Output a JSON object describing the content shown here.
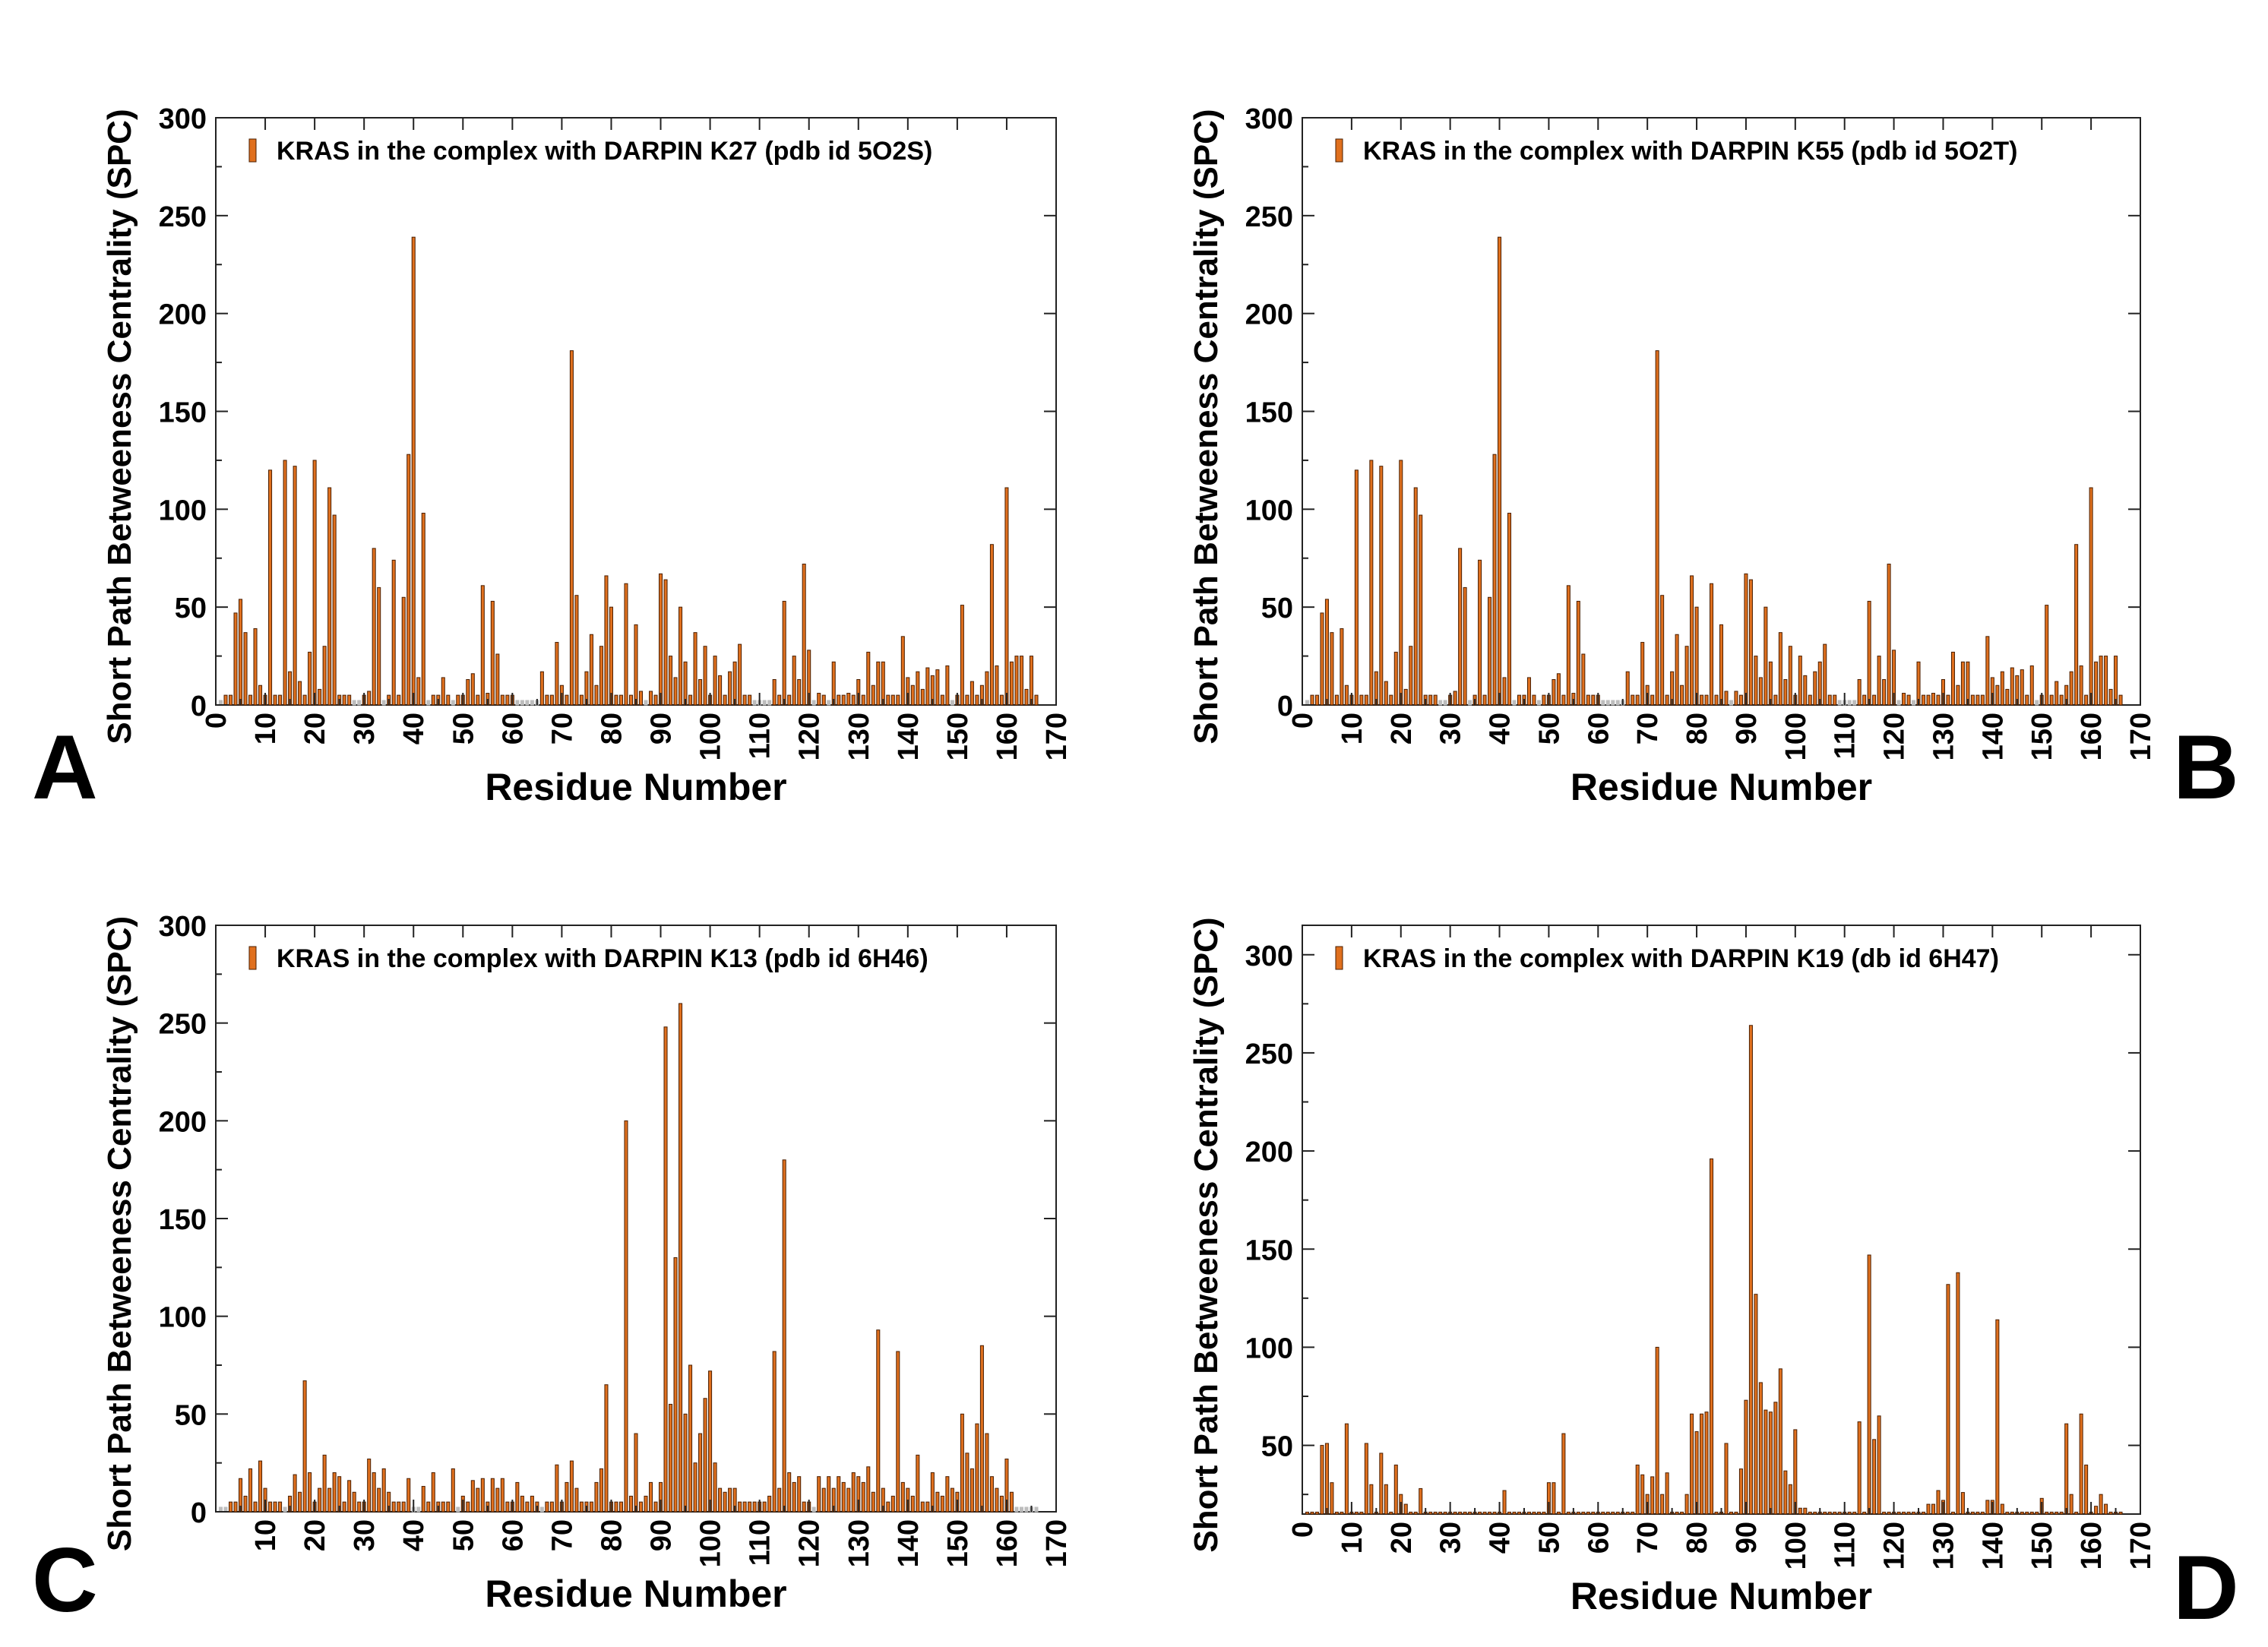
{
  "figure": {
    "panel_letters": [
      "A",
      "B",
      "C",
      "D"
    ],
    "colors": {
      "bar_fill": "#E0701E",
      "bar_stroke": "#4A1E00",
      "zero_bar": "#bdbdbd",
      "axis": "#222222",
      "text": "#000000"
    }
  },
  "chart_data": [
    {
      "panel": "A",
      "type": "bar",
      "title": "",
      "legend": "KRAS in the complex with DARPIN K27 (pdb id 5O2S)",
      "xlabel": "Residue Number",
      "ylabel": "Short  Path Betweeness Centrality (SPC)",
      "xlim": [
        0,
        170
      ],
      "ylim": [
        0,
        300
      ],
      "xticks": [
        0,
        10,
        20,
        30,
        40,
        50,
        60,
        70,
        80,
        90,
        100,
        110,
        120,
        130,
        140,
        150,
        160,
        170
      ],
      "yticks": [
        0,
        50,
        100,
        150,
        200,
        250,
        300
      ],
      "x": [
        1,
        2,
        3,
        4,
        5,
        6,
        7,
        8,
        9,
        10,
        11,
        12,
        13,
        14,
        15,
        16,
        17,
        18,
        19,
        20,
        21,
        22,
        23,
        24,
        25,
        26,
        27,
        28,
        29,
        30,
        31,
        32,
        33,
        34,
        35,
        36,
        37,
        38,
        39,
        40,
        41,
        42,
        43,
        44,
        45,
        46,
        47,
        48,
        49,
        50,
        51,
        52,
        53,
        54,
        55,
        56,
        57,
        58,
        59,
        60,
        61,
        62,
        63,
        64,
        65,
        66,
        67,
        68,
        69,
        70,
        71,
        72,
        73,
        74,
        75,
        76,
        77,
        78,
        79,
        80,
        81,
        82,
        83,
        84,
        85,
        86,
        87,
        88,
        89,
        90,
        91,
        92,
        93,
        94,
        95,
        96,
        97,
        98,
        99,
        100,
        101,
        102,
        103,
        104,
        105,
        106,
        107,
        108,
        109,
        110,
        111,
        112,
        113,
        114,
        115,
        116,
        117,
        118,
        119,
        120,
        121,
        122,
        123,
        124,
        125,
        126,
        127,
        128,
        129,
        130,
        131,
        132,
        133,
        134,
        135,
        136,
        137,
        138,
        139,
        140,
        141,
        142,
        143,
        144,
        145,
        146,
        147,
        148,
        149,
        150,
        151,
        152,
        153,
        154,
        155,
        156,
        157,
        158,
        159,
        160,
        161,
        162,
        163,
        164,
        165,
        166
      ],
      "values": [
        0,
        5,
        5,
        47,
        54,
        37,
        5,
        39,
        10,
        5,
        120,
        5,
        5,
        125,
        17,
        122,
        12,
        5,
        27,
        125,
        8,
        30,
        111,
        97,
        5,
        5,
        5,
        0,
        0,
        5,
        7,
        80,
        60,
        0,
        5,
        74,
        5,
        55,
        128,
        239,
        14,
        98,
        0,
        5,
        5,
        14,
        5,
        0,
        5,
        5,
        13,
        16,
        5,
        61,
        6,
        53,
        26,
        5,
        5,
        5,
        0,
        0,
        0,
        0,
        0,
        17,
        5,
        5,
        32,
        10,
        5,
        181,
        56,
        5,
        17,
        36,
        10,
        30,
        66,
        50,
        5,
        5,
        62,
        5,
        41,
        7,
        0,
        7,
        5,
        67,
        64,
        25,
        14,
        50,
        22,
        5,
        37,
        13,
        30,
        5,
        25,
        15,
        5,
        17,
        22,
        31,
        5,
        5,
        0,
        0,
        0,
        0,
        13,
        5,
        53,
        5,
        25,
        13,
        72,
        28,
        0,
        6,
        5,
        0,
        22,
        5,
        5,
        6,
        5,
        13,
        5,
        27,
        10,
        22,
        22,
        5,
        5,
        5,
        35,
        14,
        10,
        17,
        8,
        19,
        15,
        18,
        5,
        20,
        0,
        5,
        51,
        5,
        12,
        5,
        10,
        17,
        82,
        20,
        5,
        111,
        22,
        25,
        25,
        8,
        25,
        5
      ]
    },
    {
      "panel": "B",
      "type": "bar",
      "title": "",
      "legend": "KRAS in the complex with DARPIN K55 (pdb id 5O2T)",
      "xlabel": "Residue Number",
      "ylabel": "Short  Path Betweeness Centrality (SPC)",
      "xlim": [
        0,
        170
      ],
      "ylim": [
        0,
        300
      ],
      "xticks": [
        0,
        10,
        20,
        30,
        40,
        50,
        60,
        70,
        80,
        90,
        100,
        110,
        120,
        130,
        140,
        150,
        160,
        170
      ],
      "yticks": [
        0,
        50,
        100,
        150,
        200,
        250,
        300
      ],
      "x": [
        1,
        2,
        3,
        4,
        5,
        6,
        7,
        8,
        9,
        10,
        11,
        12,
        13,
        14,
        15,
        16,
        17,
        18,
        19,
        20,
        21,
        22,
        23,
        24,
        25,
        26,
        27,
        28,
        29,
        30,
        31,
        32,
        33,
        34,
        35,
        36,
        37,
        38,
        39,
        40,
        41,
        42,
        43,
        44,
        45,
        46,
        47,
        48,
        49,
        50,
        51,
        52,
        53,
        54,
        55,
        56,
        57,
        58,
        59,
        60,
        61,
        62,
        63,
        64,
        65,
        66,
        67,
        68,
        69,
        70,
        71,
        72,
        73,
        74,
        75,
        76,
        77,
        78,
        79,
        80,
        81,
        82,
        83,
        84,
        85,
        86,
        87,
        88,
        89,
        90,
        91,
        92,
        93,
        94,
        95,
        96,
        97,
        98,
        99,
        100,
        101,
        102,
        103,
        104,
        105,
        106,
        107,
        108,
        109,
        110,
        111,
        112,
        113,
        114,
        115,
        116,
        117,
        118,
        119,
        120,
        121,
        122,
        123,
        124,
        125,
        126,
        127,
        128,
        129,
        130,
        131,
        132,
        133,
        134,
        135,
        136,
        137,
        138,
        139,
        140,
        141,
        142,
        143,
        144,
        145,
        146,
        147,
        148,
        149,
        150,
        151,
        152,
        153,
        154,
        155,
        156,
        157,
        158,
        159,
        160,
        161,
        162,
        163,
        164,
        165,
        166
      ],
      "values": [
        0,
        5,
        5,
        47,
        54,
        37,
        5,
        39,
        10,
        5,
        120,
        5,
        5,
        125,
        17,
        122,
        12,
        5,
        27,
        125,
        8,
        30,
        111,
        97,
        5,
        5,
        5,
        0,
        0,
        5,
        7,
        80,
        60,
        0,
        5,
        74,
        5,
        55,
        128,
        239,
        14,
        98,
        0,
        5,
        5,
        14,
        5,
        0,
        5,
        5,
        13,
        16,
        5,
        61,
        6,
        53,
        26,
        5,
        5,
        5,
        0,
        0,
        0,
        0,
        0,
        17,
        5,
        5,
        32,
        10,
        5,
        181,
        56,
        5,
        17,
        36,
        10,
        30,
        66,
        50,
        5,
        5,
        62,
        5,
        41,
        7,
        0,
        7,
        5,
        67,
        64,
        25,
        14,
        50,
        22,
        5,
        37,
        13,
        30,
        5,
        25,
        15,
        5,
        17,
        22,
        31,
        5,
        5,
        0,
        0,
        0,
        0,
        13,
        5,
        53,
        5,
        25,
        13,
        72,
        28,
        0,
        6,
        5,
        0,
        22,
        5,
        5,
        6,
        5,
        13,
        5,
        27,
        10,
        22,
        22,
        5,
        5,
        5,
        35,
        14,
        10,
        17,
        8,
        19,
        15,
        18,
        5,
        20,
        0,
        5,
        51,
        5,
        12,
        5,
        10,
        17,
        82,
        20,
        5,
        111,
        22,
        25,
        25,
        8,
        25,
        5
      ]
    },
    {
      "panel": "C",
      "type": "bar",
      "title": "",
      "legend": "KRAS in the complex with DARPIN K13 (pdb id 6H46)",
      "xlabel": "Residue Number",
      "ylabel": "Short  Path Betweeness Centrality (SPC)",
      "xlim": [
        0,
        170
      ],
      "ylim": [
        0,
        300
      ],
      "xticks": [
        10,
        20,
        30,
        40,
        50,
        60,
        70,
        80,
        90,
        100,
        110,
        120,
        130,
        140,
        150,
        160,
        170
      ],
      "yticks": [
        0,
        50,
        100,
        150,
        200,
        250,
        300
      ],
      "x": [
        1,
        2,
        3,
        4,
        5,
        6,
        7,
        8,
        9,
        10,
        11,
        12,
        13,
        14,
        15,
        16,
        17,
        18,
        19,
        20,
        21,
        22,
        23,
        24,
        25,
        26,
        27,
        28,
        29,
        30,
        31,
        32,
        33,
        34,
        35,
        36,
        37,
        38,
        39,
        40,
        41,
        42,
        43,
        44,
        45,
        46,
        47,
        48,
        49,
        50,
        51,
        52,
        53,
        54,
        55,
        56,
        57,
        58,
        59,
        60,
        61,
        62,
        63,
        64,
        65,
        66,
        67,
        68,
        69,
        70,
        71,
        72,
        73,
        74,
        75,
        76,
        77,
        78,
        79,
        80,
        81,
        82,
        83,
        84,
        85,
        86,
        87,
        88,
        89,
        90,
        91,
        92,
        93,
        94,
        95,
        96,
        97,
        98,
        99,
        100,
        101,
        102,
        103,
        104,
        105,
        106,
        107,
        108,
        109,
        110,
        111,
        112,
        113,
        114,
        115,
        116,
        117,
        118,
        119,
        120,
        121,
        122,
        123,
        124,
        125,
        126,
        127,
        128,
        129,
        130,
        131,
        132,
        133,
        134,
        135,
        136,
        137,
        138,
        139,
        140,
        141,
        142,
        143,
        144,
        145,
        146,
        147,
        148,
        149,
        150,
        151,
        152,
        153,
        154,
        155,
        156,
        157,
        158,
        159,
        160,
        161,
        162,
        163,
        164,
        165,
        166
      ],
      "values": [
        0,
        0,
        5,
        5,
        17,
        8,
        22,
        5,
        26,
        12,
        5,
        5,
        5,
        0,
        8,
        19,
        10,
        67,
        20,
        5,
        12,
        29,
        12,
        20,
        18,
        5,
        16,
        10,
        5,
        5,
        27,
        20,
        12,
        22,
        10,
        5,
        5,
        5,
        17,
        0,
        0,
        13,
        5,
        20,
        5,
        5,
        5,
        22,
        0,
        8,
        5,
        16,
        12,
        17,
        5,
        17,
        12,
        17,
        5,
        5,
        15,
        8,
        5,
        8,
        5,
        0,
        5,
        5,
        24,
        5,
        15,
        26,
        12,
        5,
        5,
        5,
        15,
        22,
        65,
        5,
        5,
        5,
        200,
        8,
        40,
        5,
        8,
        15,
        5,
        15,
        248,
        55,
        130,
        260,
        50,
        75,
        25,
        40,
        58,
        72,
        25,
        12,
        10,
        12,
        12,
        5,
        5,
        5,
        5,
        5,
        5,
        8,
        82,
        12,
        180,
        20,
        15,
        18,
        5,
        5,
        0,
        18,
        12,
        18,
        12,
        18,
        15,
        12,
        20,
        18,
        15,
        23,
        10,
        93,
        12,
        5,
        8,
        82,
        15,
        12,
        8,
        29,
        5,
        5,
        20,
        10,
        8,
        18,
        12,
        10,
        50,
        30,
        22,
        45,
        85,
        40,
        18,
        12,
        8,
        27,
        10,
        0,
        0,
        0,
        0,
        0
      ]
    },
    {
      "panel": "D",
      "type": "bar",
      "title": "",
      "legend": "KRAS in the complex with DARPIN K19 (db id 6H47)",
      "xlabel": "Residue Number",
      "ylabel": "Short  Path Betweeness Centrality (SPC)",
      "xlim": [
        0,
        170
      ],
      "ylim": [
        15,
        315
      ],
      "xticks": [
        0,
        10,
        20,
        30,
        40,
        50,
        60,
        70,
        80,
        90,
        100,
        110,
        120,
        130,
        140,
        150,
        160,
        170
      ],
      "yticks": [
        50,
        100,
        150,
        200,
        250,
        300
      ],
      "x": [
        1,
        2,
        3,
        4,
        5,
        6,
        7,
        8,
        9,
        10,
        11,
        12,
        13,
        14,
        15,
        16,
        17,
        18,
        19,
        20,
        21,
        22,
        23,
        24,
        25,
        26,
        27,
        28,
        29,
        30,
        31,
        32,
        33,
        34,
        35,
        36,
        37,
        38,
        39,
        40,
        41,
        42,
        43,
        44,
        45,
        46,
        47,
        48,
        49,
        50,
        51,
        52,
        53,
        54,
        55,
        56,
        57,
        58,
        59,
        60,
        61,
        62,
        63,
        64,
        65,
        66,
        67,
        68,
        69,
        70,
        71,
        72,
        73,
        74,
        75,
        76,
        77,
        78,
        79,
        80,
        81,
        82,
        83,
        84,
        85,
        86,
        87,
        88,
        89,
        90,
        91,
        92,
        93,
        94,
        95,
        96,
        97,
        98,
        99,
        100,
        101,
        102,
        103,
        104,
        105,
        106,
        107,
        108,
        109,
        110,
        111,
        112,
        113,
        114,
        115,
        116,
        117,
        118,
        119,
        120,
        121,
        122,
        123,
        124,
        125,
        126,
        127,
        128,
        129,
        130,
        131,
        132,
        133,
        134,
        135,
        136,
        137,
        138,
        139,
        140,
        141,
        142,
        143,
        144,
        145,
        146,
        147,
        148,
        149,
        150,
        151,
        152,
        153,
        154,
        155,
        156,
        157,
        158,
        159,
        160,
        161,
        162,
        163,
        164,
        165,
        166
      ],
      "values": [
        16,
        16,
        16,
        50,
        51,
        31,
        16,
        16,
        61,
        16,
        16,
        16,
        51,
        30,
        16,
        46,
        30,
        16,
        40,
        25,
        20,
        16,
        16,
        28,
        16,
        16,
        16,
        16,
        16,
        16,
        16,
        16,
        16,
        16,
        16,
        16,
        16,
        16,
        16,
        16,
        27,
        16,
        16,
        16,
        16,
        16,
        16,
        16,
        16,
        31,
        31,
        16,
        56,
        16,
        16,
        16,
        16,
        16,
        16,
        16,
        16,
        16,
        16,
        16,
        16,
        16,
        16,
        40,
        35,
        25,
        34,
        100,
        25,
        36,
        16,
        16,
        16,
        25,
        66,
        57,
        66,
        67,
        196,
        16,
        16,
        51,
        16,
        16,
        38,
        73,
        264,
        127,
        82,
        68,
        67,
        72,
        89,
        37,
        30,
        58,
        18,
        18,
        16,
        16,
        16,
        16,
        16,
        16,
        16,
        16,
        16,
        16,
        62,
        16,
        147,
        53,
        65,
        16,
        16,
        16,
        16,
        16,
        16,
        16,
        16,
        16,
        20,
        20,
        27,
        22,
        132,
        16,
        138,
        26,
        16,
        16,
        16,
        16,
        22,
        22,
        114,
        20,
        16,
        16,
        16,
        16,
        16,
        16,
        16,
        23,
        16,
        16,
        16,
        16,
        61,
        25,
        16,
        66,
        40,
        16,
        19,
        25,
        20,
        16,
        16,
        16
      ]
    }
  ]
}
